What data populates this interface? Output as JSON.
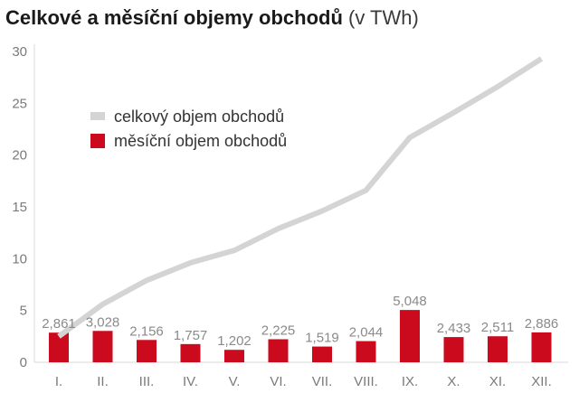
{
  "chart_data": {
    "type": "bar",
    "title": "Celkové a měsíční objemy obchodů",
    "title_unit": "(v TWh)",
    "categories": [
      "I.",
      "II.",
      "III.",
      "IV.",
      "V.",
      "VI.",
      "VII.",
      "VIII.",
      "IX.",
      "X.",
      "XI.",
      "XII."
    ],
    "series": [
      {
        "name": "celkový objem obchodů",
        "type": "line",
        "color": "#d4d4d4",
        "values": [
          2.5,
          5.6,
          7.9,
          9.6,
          10.8,
          12.9,
          14.6,
          16.6,
          21.7,
          24.1,
          26.6,
          29.3
        ]
      },
      {
        "name": "měsíční objem obchodů",
        "type": "bar",
        "color": "#cc0a1e",
        "values": [
          2.861,
          3.028,
          2.156,
          1.757,
          1.202,
          2.225,
          1.519,
          2.044,
          5.048,
          2.433,
          2.511,
          2.886
        ],
        "labels": [
          "2,861",
          "3,028",
          "2,156",
          "1,757",
          "1,202",
          "2,225",
          "1,519",
          "2,044",
          "5,048",
          "2,433",
          "2,511",
          "2,886"
        ]
      }
    ],
    "y_ticks": [
      0,
      5,
      10,
      15,
      20,
      25,
      30
    ],
    "ylim": [
      0,
      30
    ],
    "xlabel": "",
    "ylabel": "",
    "grid": false,
    "legend_position": "top-left",
    "axis_color": "#d9d9d9"
  }
}
